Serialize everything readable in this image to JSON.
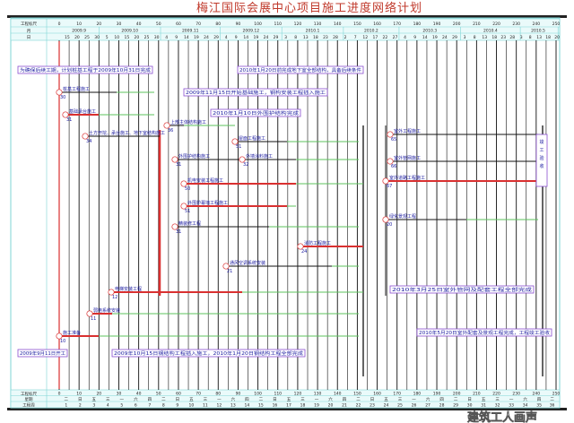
{
  "title": "梅江国际会展中心项目施工进度网络计划",
  "header": {
    "scale_label": "工程标尺",
    "month_label": "月",
    "day_label": "日",
    "scale_ticks": [
      "0",
      "10",
      "20",
      "30",
      "40",
      "50",
      "60",
      "70",
      "80",
      "90",
      "100",
      "110",
      "120",
      "130",
      "140",
      "150",
      "160",
      "170",
      "180",
      "190",
      "200",
      "210",
      "220",
      "230",
      "240",
      "250"
    ],
    "months": [
      "2009.9",
      "2009.10",
      "2009.11",
      "2009.12",
      "2010.1",
      "2010.2",
      "2010.3",
      "2010.4",
      "2010.5"
    ],
    "days": [
      [
        "15",
        "20",
        "25",
        "30"
      ],
      [
        "5",
        "10",
        "15",
        "20",
        "25",
        "30"
      ],
      [
        "4",
        "9",
        "14",
        "19",
        "24",
        "29"
      ],
      [
        "4",
        "9",
        "14",
        "19",
        "24",
        "29"
      ],
      [
        "3",
        "8",
        "13",
        "18",
        "23",
        "28"
      ],
      [
        "2",
        "7",
        "12",
        "17",
        "22",
        "27"
      ],
      [
        "4",
        "9",
        "14",
        "19",
        "24",
        "29"
      ],
      [
        "3",
        "8",
        "13",
        "18",
        "23",
        "28"
      ],
      [
        "3",
        "8",
        "13",
        "18",
        "20"
      ]
    ]
  },
  "footer": {
    "scale_label": "工程标尺",
    "weekday_label": "星期",
    "week_label": "工程周",
    "weekdays": [
      "二",
      "日",
      "五",
      "三",
      "一",
      "六",
      "四",
      "二",
      "日",
      "五",
      "三",
      "一",
      "六",
      "四",
      "二",
      "日",
      "五",
      "三",
      "一",
      "六",
      "四",
      "二",
      "日",
      "五",
      "三",
      "一",
      "六",
      "四",
      "二",
      "日",
      "五",
      "三",
      "一",
      "六",
      "四",
      "二"
    ],
    "weeks": [
      "1",
      "2",
      "3",
      "4",
      "5",
      "6",
      "7",
      "8",
      "9",
      "10",
      "11",
      "12",
      "13",
      "14",
      "15",
      "16",
      "17",
      "18",
      "19",
      "20",
      "21",
      "22",
      "23",
      "24",
      "25",
      "26",
      "27",
      "28",
      "29",
      "30",
      "31",
      "32",
      "33",
      "34",
      "35",
      "36"
    ]
  },
  "notes": [
    "为确保后续工期，计划桩基工程于2009年10月31日完成",
    "2010年1月20日前完成地下室全部结构，具备后续条件",
    "2009年11月15日开始基础施工，钢构安装工程插入施工",
    "2010年1月10日外围护结构完成",
    "2009年9月11日开工",
    "2009年10月15日钢结构工程插入施工，2010年1月20日钢结构工程全部完成",
    "2010年3月25日室外管网及配套工程全部完成",
    "2010年5月20日室外配套及景观工程完成，工程竣工验收",
    "竣工验收"
  ],
  "activities": [
    {
      "label": "桩基工程施工",
      "node": "30"
    },
    {
      "label": "基础承台施工",
      "node": "31"
    },
    {
      "label": "土方开挖、承台施工、地下室结构施工",
      "node": "34"
    },
    {
      "label": "上部主体结构施工",
      "node": "36"
    },
    {
      "label": "外围护结构施工",
      "node": "31"
    },
    {
      "label": "外墙涂料施工",
      "node": "32"
    },
    {
      "label": "屋面工程施工",
      "node": "51"
    },
    {
      "label": "机电安装工程施工",
      "node": "50"
    },
    {
      "label": "外围护幕墙工程施工",
      "node": "51"
    },
    {
      "label": "精装修工程",
      "node": "31"
    },
    {
      "label": "消防工程施工",
      "node": "24"
    },
    {
      "label": "通风空调系统安装",
      "node": "21"
    },
    {
      "label": "电梯安装工程",
      "node": "12"
    },
    {
      "label": "弱电系统安装",
      "node": "11"
    },
    {
      "label": "施工准备",
      "node": "10"
    },
    {
      "label": "室外工程施工",
      "node": "65"
    },
    {
      "label": "室外管网施工",
      "node": "66"
    },
    {
      "label": "室外道路工程施工",
      "node": "67"
    },
    {
      "label": "绿化景观工程",
      "node": "20"
    }
  ],
  "watermark": "建筑工人画声",
  "colors": {
    "critical": "#d93030",
    "normal": "#111111",
    "float": "#5cc35c",
    "frame": "#7fd6d6",
    "note_border": "#8a4fd0",
    "text": "#1a1aa0",
    "title": "#c0392b"
  }
}
